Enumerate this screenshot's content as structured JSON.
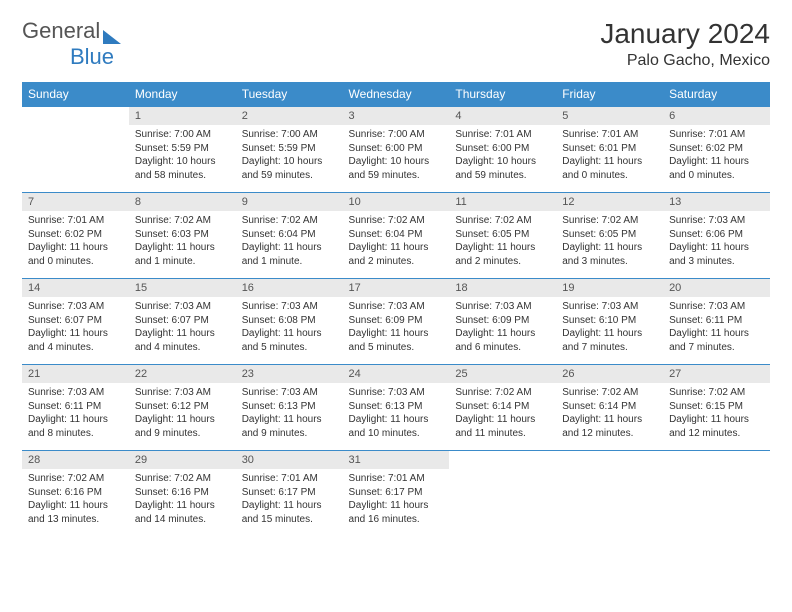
{
  "logo": {
    "text1": "General",
    "text2": "Blue"
  },
  "title": "January 2024",
  "location": "Palo Gacho, Mexico",
  "colors": {
    "header_bg": "#3b8bc9",
    "header_fg": "#ffffff",
    "daynum_bg": "#e9e9e9",
    "border": "#3b8bc9",
    "logo_blue": "#2f7bbf",
    "logo_gray": "#555555"
  },
  "dayNames": [
    "Sunday",
    "Monday",
    "Tuesday",
    "Wednesday",
    "Thursday",
    "Friday",
    "Saturday"
  ],
  "weeks": [
    [
      {
        "n": "",
        "sunrise": "",
        "sunset": "",
        "daylight": ""
      },
      {
        "n": "1",
        "sunrise": "Sunrise: 7:00 AM",
        "sunset": "Sunset: 5:59 PM",
        "daylight": "Daylight: 10 hours and 58 minutes."
      },
      {
        "n": "2",
        "sunrise": "Sunrise: 7:00 AM",
        "sunset": "Sunset: 5:59 PM",
        "daylight": "Daylight: 10 hours and 59 minutes."
      },
      {
        "n": "3",
        "sunrise": "Sunrise: 7:00 AM",
        "sunset": "Sunset: 6:00 PM",
        "daylight": "Daylight: 10 hours and 59 minutes."
      },
      {
        "n": "4",
        "sunrise": "Sunrise: 7:01 AM",
        "sunset": "Sunset: 6:00 PM",
        "daylight": "Daylight: 10 hours and 59 minutes."
      },
      {
        "n": "5",
        "sunrise": "Sunrise: 7:01 AM",
        "sunset": "Sunset: 6:01 PM",
        "daylight": "Daylight: 11 hours and 0 minutes."
      },
      {
        "n": "6",
        "sunrise": "Sunrise: 7:01 AM",
        "sunset": "Sunset: 6:02 PM",
        "daylight": "Daylight: 11 hours and 0 minutes."
      }
    ],
    [
      {
        "n": "7",
        "sunrise": "Sunrise: 7:01 AM",
        "sunset": "Sunset: 6:02 PM",
        "daylight": "Daylight: 11 hours and 0 minutes."
      },
      {
        "n": "8",
        "sunrise": "Sunrise: 7:02 AM",
        "sunset": "Sunset: 6:03 PM",
        "daylight": "Daylight: 11 hours and 1 minute."
      },
      {
        "n": "9",
        "sunrise": "Sunrise: 7:02 AM",
        "sunset": "Sunset: 6:04 PM",
        "daylight": "Daylight: 11 hours and 1 minute."
      },
      {
        "n": "10",
        "sunrise": "Sunrise: 7:02 AM",
        "sunset": "Sunset: 6:04 PM",
        "daylight": "Daylight: 11 hours and 2 minutes."
      },
      {
        "n": "11",
        "sunrise": "Sunrise: 7:02 AM",
        "sunset": "Sunset: 6:05 PM",
        "daylight": "Daylight: 11 hours and 2 minutes."
      },
      {
        "n": "12",
        "sunrise": "Sunrise: 7:02 AM",
        "sunset": "Sunset: 6:05 PM",
        "daylight": "Daylight: 11 hours and 3 minutes."
      },
      {
        "n": "13",
        "sunrise": "Sunrise: 7:03 AM",
        "sunset": "Sunset: 6:06 PM",
        "daylight": "Daylight: 11 hours and 3 minutes."
      }
    ],
    [
      {
        "n": "14",
        "sunrise": "Sunrise: 7:03 AM",
        "sunset": "Sunset: 6:07 PM",
        "daylight": "Daylight: 11 hours and 4 minutes."
      },
      {
        "n": "15",
        "sunrise": "Sunrise: 7:03 AM",
        "sunset": "Sunset: 6:07 PM",
        "daylight": "Daylight: 11 hours and 4 minutes."
      },
      {
        "n": "16",
        "sunrise": "Sunrise: 7:03 AM",
        "sunset": "Sunset: 6:08 PM",
        "daylight": "Daylight: 11 hours and 5 minutes."
      },
      {
        "n": "17",
        "sunrise": "Sunrise: 7:03 AM",
        "sunset": "Sunset: 6:09 PM",
        "daylight": "Daylight: 11 hours and 5 minutes."
      },
      {
        "n": "18",
        "sunrise": "Sunrise: 7:03 AM",
        "sunset": "Sunset: 6:09 PM",
        "daylight": "Daylight: 11 hours and 6 minutes."
      },
      {
        "n": "19",
        "sunrise": "Sunrise: 7:03 AM",
        "sunset": "Sunset: 6:10 PM",
        "daylight": "Daylight: 11 hours and 7 minutes."
      },
      {
        "n": "20",
        "sunrise": "Sunrise: 7:03 AM",
        "sunset": "Sunset: 6:11 PM",
        "daylight": "Daylight: 11 hours and 7 minutes."
      }
    ],
    [
      {
        "n": "21",
        "sunrise": "Sunrise: 7:03 AM",
        "sunset": "Sunset: 6:11 PM",
        "daylight": "Daylight: 11 hours and 8 minutes."
      },
      {
        "n": "22",
        "sunrise": "Sunrise: 7:03 AM",
        "sunset": "Sunset: 6:12 PM",
        "daylight": "Daylight: 11 hours and 9 minutes."
      },
      {
        "n": "23",
        "sunrise": "Sunrise: 7:03 AM",
        "sunset": "Sunset: 6:13 PM",
        "daylight": "Daylight: 11 hours and 9 minutes."
      },
      {
        "n": "24",
        "sunrise": "Sunrise: 7:03 AM",
        "sunset": "Sunset: 6:13 PM",
        "daylight": "Daylight: 11 hours and 10 minutes."
      },
      {
        "n": "25",
        "sunrise": "Sunrise: 7:02 AM",
        "sunset": "Sunset: 6:14 PM",
        "daylight": "Daylight: 11 hours and 11 minutes."
      },
      {
        "n": "26",
        "sunrise": "Sunrise: 7:02 AM",
        "sunset": "Sunset: 6:14 PM",
        "daylight": "Daylight: 11 hours and 12 minutes."
      },
      {
        "n": "27",
        "sunrise": "Sunrise: 7:02 AM",
        "sunset": "Sunset: 6:15 PM",
        "daylight": "Daylight: 11 hours and 12 minutes."
      }
    ],
    [
      {
        "n": "28",
        "sunrise": "Sunrise: 7:02 AM",
        "sunset": "Sunset: 6:16 PM",
        "daylight": "Daylight: 11 hours and 13 minutes."
      },
      {
        "n": "29",
        "sunrise": "Sunrise: 7:02 AM",
        "sunset": "Sunset: 6:16 PM",
        "daylight": "Daylight: 11 hours and 14 minutes."
      },
      {
        "n": "30",
        "sunrise": "Sunrise: 7:01 AM",
        "sunset": "Sunset: 6:17 PM",
        "daylight": "Daylight: 11 hours and 15 minutes."
      },
      {
        "n": "31",
        "sunrise": "Sunrise: 7:01 AM",
        "sunset": "Sunset: 6:17 PM",
        "daylight": "Daylight: 11 hours and 16 minutes."
      },
      {
        "n": "",
        "sunrise": "",
        "sunset": "",
        "daylight": ""
      },
      {
        "n": "",
        "sunrise": "",
        "sunset": "",
        "daylight": ""
      },
      {
        "n": "",
        "sunrise": "",
        "sunset": "",
        "daylight": ""
      }
    ]
  ]
}
